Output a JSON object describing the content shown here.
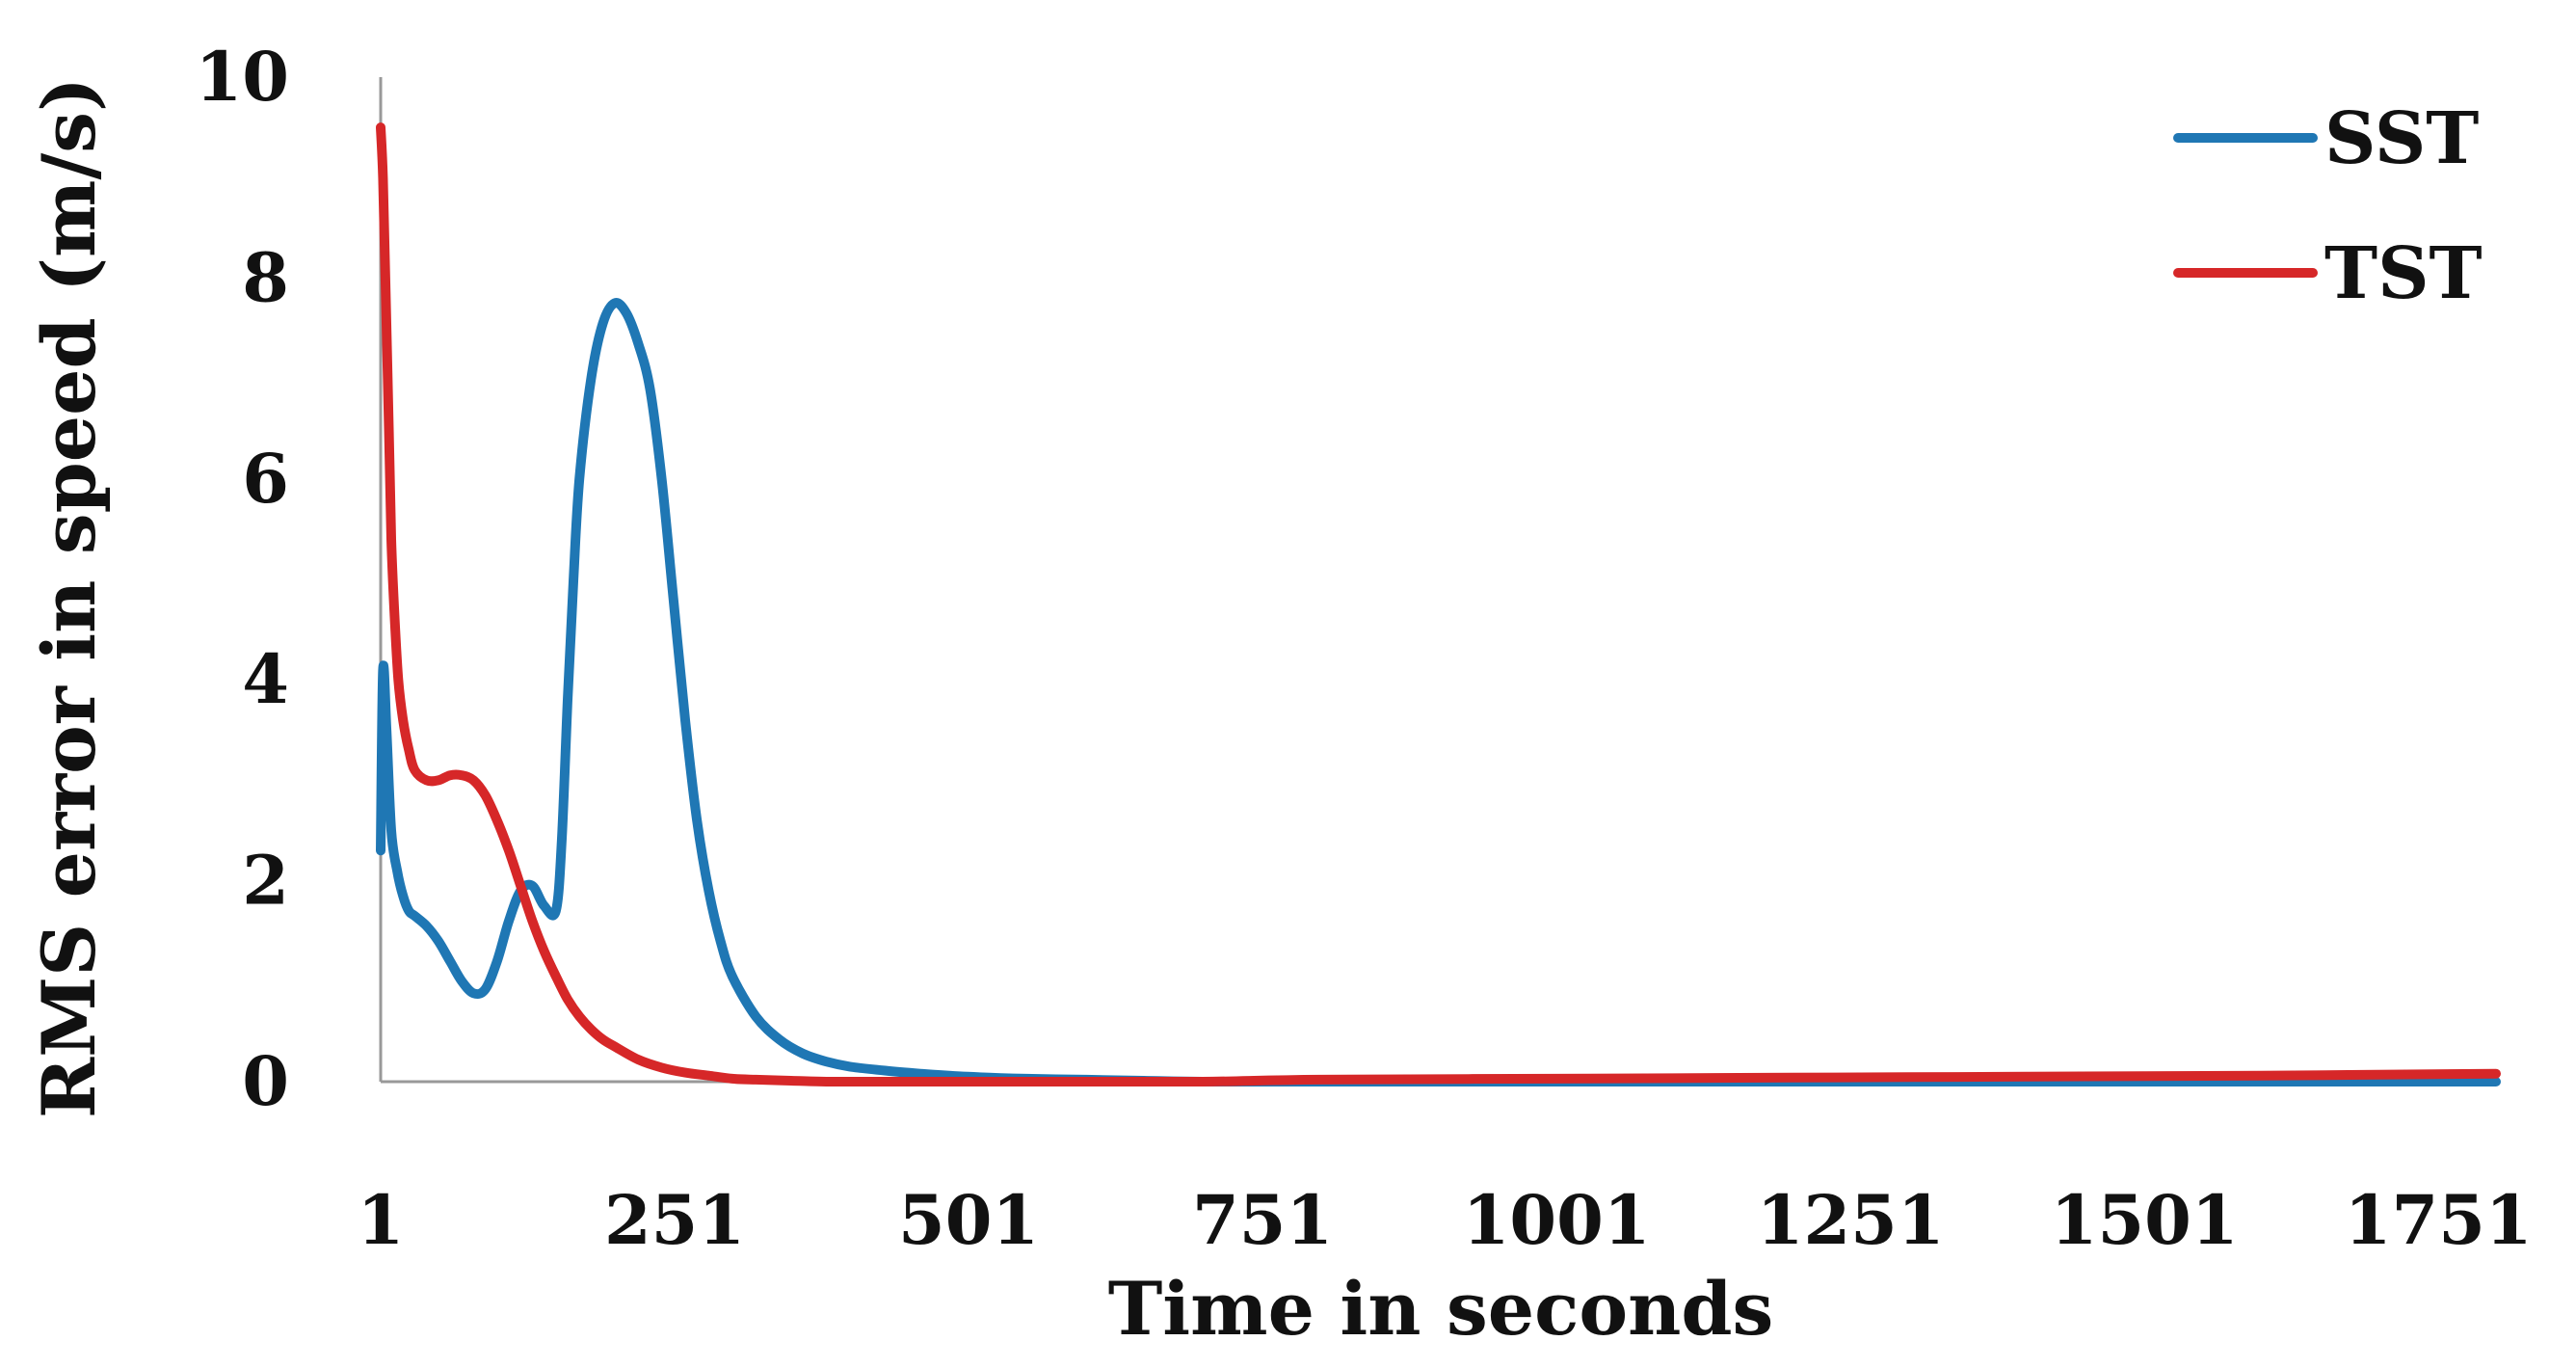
{
  "chart_data": {
    "type": "line",
    "xlabel": "Time in seconds",
    "ylabel": "RMS error in speed (m/s)",
    "xlim": [
      1,
      1800
    ],
    "ylim": [
      0,
      10
    ],
    "x_ticks": [
      "1",
      "251",
      "501",
      "751",
      "1001",
      "1251",
      "1501",
      "1751"
    ],
    "y_ticks": [
      "0",
      "2",
      "4",
      "6",
      "8",
      "10"
    ],
    "legend": "top-right",
    "grid": false,
    "series": [
      {
        "name": "SST",
        "color": "#1f77b4",
        "x": [
          1,
          3,
          6,
          10,
          15,
          20,
          25,
          30,
          40,
          50,
          60,
          70,
          80,
          90,
          100,
          110,
          120,
          130,
          140,
          150,
          155,
          160,
          165,
          170,
          180,
          190,
          200,
          210,
          220,
          230,
          240,
          250,
          260,
          270,
          280,
          290,
          300,
          320,
          340,
          360,
          380,
          400,
          430,
          460,
          500,
          550,
          600,
          650,
          700,
          800,
          1800
        ],
        "y": [
          2.3,
          4.1,
          3.5,
          2.5,
          2.1,
          1.85,
          1.7,
          1.65,
          1.55,
          1.4,
          1.2,
          1.0,
          0.88,
          0.92,
          1.2,
          1.6,
          1.9,
          1.95,
          1.75,
          1.7,
          2.4,
          3.8,
          5.0,
          6.0,
          7.0,
          7.55,
          7.75,
          7.65,
          7.35,
          6.9,
          6.0,
          4.8,
          3.6,
          2.6,
          1.9,
          1.4,
          1.05,
          0.65,
          0.42,
          0.28,
          0.2,
          0.15,
          0.11,
          0.08,
          0.05,
          0.03,
          0.02,
          0.01,
          0.0,
          0.0,
          0.0
        ]
      },
      {
        "name": "TST",
        "color": "#d62728",
        "x": [
          1,
          3,
          5,
          8,
          10,
          13,
          16,
          20,
          25,
          30,
          40,
          50,
          60,
          70,
          80,
          90,
          100,
          110,
          120,
          130,
          140,
          150,
          160,
          170,
          180,
          190,
          200,
          220,
          240,
          260,
          280,
          300,
          320,
          350,
          380,
          420,
          500,
          600,
          700,
          800,
          1000,
          1200,
          1400,
          1600,
          1800
        ],
        "y": [
          9.5,
          9.0,
          8.0,
          6.5,
          5.4,
          4.6,
          4.0,
          3.6,
          3.3,
          3.1,
          3.0,
          3.0,
          3.05,
          3.05,
          3.0,
          2.85,
          2.6,
          2.3,
          1.95,
          1.6,
          1.3,
          1.05,
          0.82,
          0.65,
          0.52,
          0.42,
          0.35,
          0.22,
          0.14,
          0.09,
          0.06,
          0.03,
          0.02,
          0.01,
          0.0,
          0.0,
          0.0,
          0.0,
          0.0,
          0.02,
          0.03,
          0.04,
          0.05,
          0.06,
          0.08
        ]
      }
    ]
  }
}
